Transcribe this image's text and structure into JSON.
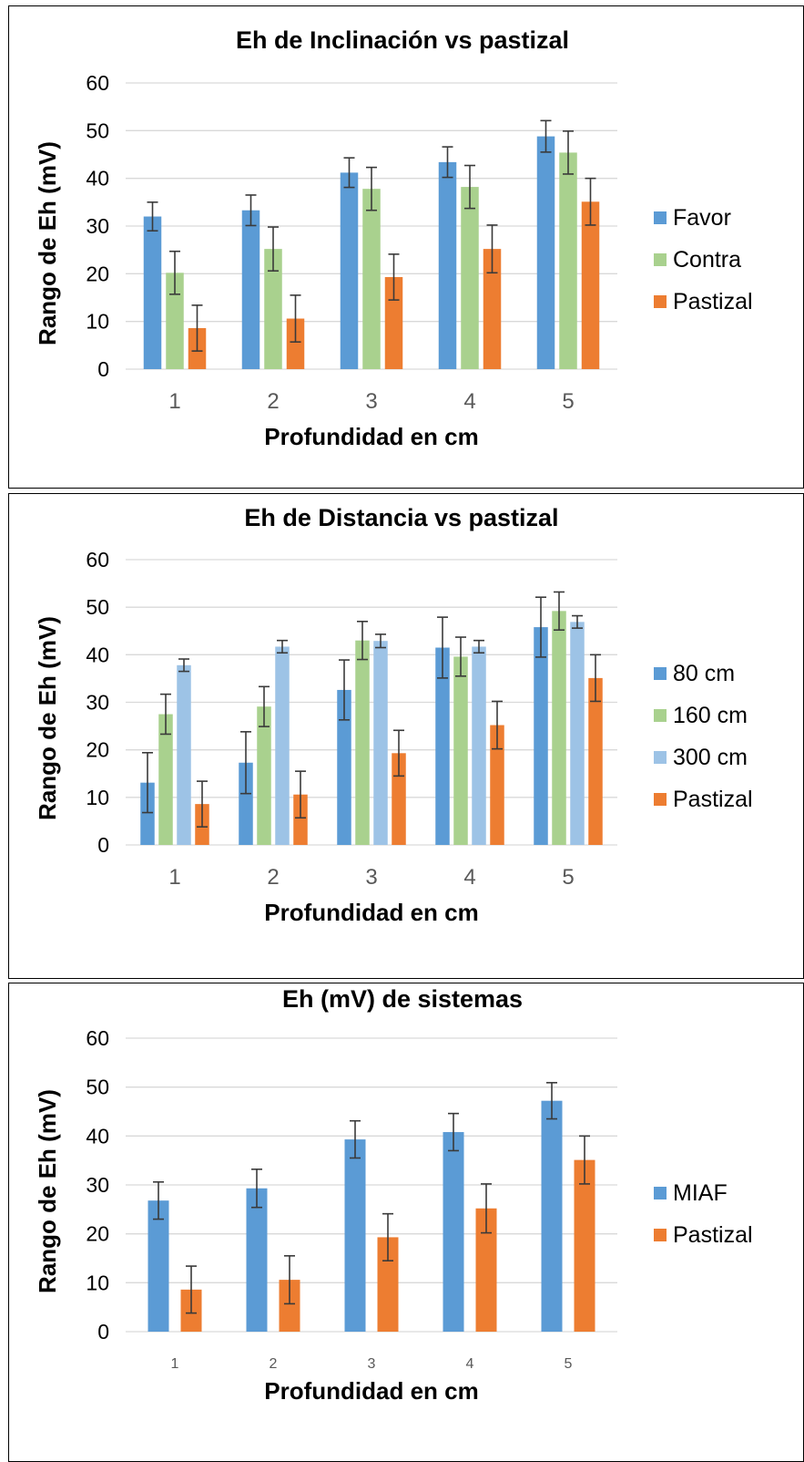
{
  "chart_data": [
    {
      "type": "bar",
      "title": "Eh de Inclinación vs pastizal",
      "xlabel": "Profundidad en cm",
      "ylabel": "Rango de Eh (mV)",
      "categories": [
        "1",
        "2",
        "3",
        "4",
        "5"
      ],
      "ylim": [
        0,
        60
      ],
      "yticks": [
        0,
        10,
        20,
        30,
        40,
        50,
        60
      ],
      "grid": true,
      "legend_position": "right",
      "series": [
        {
          "name": "Favor",
          "color": "#5b9bd5",
          "values": [
            32,
            33.3,
            41.2,
            43.4,
            48.8
          ],
          "errors": [
            3,
            3.2,
            3.1,
            3.2,
            3.3
          ]
        },
        {
          "name": "Contra",
          "color": "#a9d18e",
          "values": [
            20.2,
            25.2,
            37.8,
            38.2,
            45.4
          ],
          "errors": [
            4.5,
            4.6,
            4.5,
            4.5,
            4.5
          ]
        },
        {
          "name": "Pastizal",
          "color": "#ed7d31",
          "values": [
            8.6,
            10.6,
            19.3,
            25.2,
            35.1
          ],
          "errors": [
            4.8,
            4.9,
            4.8,
            5,
            4.9
          ]
        }
      ]
    },
    {
      "type": "bar",
      "title": "Eh de Distancia  vs pastizal",
      "xlabel": "Profundidad en cm",
      "ylabel": "Rango de Eh (mV)",
      "categories": [
        "1",
        "2",
        "3",
        "4",
        "5"
      ],
      "ylim": [
        0,
        60
      ],
      "yticks": [
        0,
        10,
        20,
        30,
        40,
        50,
        60
      ],
      "grid": true,
      "legend_position": "right",
      "series": [
        {
          "name": "80 cm",
          "color": "#5b9bd5",
          "values": [
            13.1,
            17.3,
            32.6,
            41.5,
            45.8
          ],
          "errors": [
            6.3,
            6.5,
            6.3,
            6.4,
            6.3
          ]
        },
        {
          "name": "160 cm",
          "color": "#a9d18e",
          "values": [
            27.5,
            29.1,
            43,
            39.6,
            49.2
          ],
          "errors": [
            4.2,
            4.2,
            4,
            4.1,
            4
          ]
        },
        {
          "name": "300 cm",
          "color": "#9dc3e6",
          "values": [
            37.8,
            41.7,
            42.9,
            41.7,
            46.9
          ],
          "errors": [
            1.3,
            1.3,
            1.4,
            1.3,
            1.3
          ]
        },
        {
          "name": "Pastizal",
          "color": "#ed7d31",
          "values": [
            8.6,
            10.6,
            19.3,
            25.2,
            35.1
          ],
          "errors": [
            4.8,
            4.9,
            4.8,
            5,
            4.9
          ]
        }
      ]
    },
    {
      "type": "bar",
      "title": "Eh (mV) de sistemas",
      "xlabel": "Profundidad en cm",
      "ylabel": "Rango de Eh (mV)",
      "categories": [
        "1",
        "2",
        "3",
        "4",
        "5"
      ],
      "ylim": [
        0,
        60
      ],
      "yticks": [
        0,
        10,
        20,
        30,
        40,
        50,
        60
      ],
      "grid": true,
      "legend_position": "right",
      "series": [
        {
          "name": "MIAF",
          "color": "#5b9bd5",
          "values": [
            26.8,
            29.3,
            39.3,
            40.8,
            47.2
          ],
          "errors": [
            3.8,
            3.9,
            3.8,
            3.8,
            3.7
          ]
        },
        {
          "name": "Pastizal",
          "color": "#ed7d31",
          "values": [
            8.6,
            10.6,
            19.3,
            25.2,
            35.1
          ],
          "errors": [
            4.8,
            4.9,
            4.8,
            5,
            4.9
          ]
        }
      ]
    }
  ]
}
